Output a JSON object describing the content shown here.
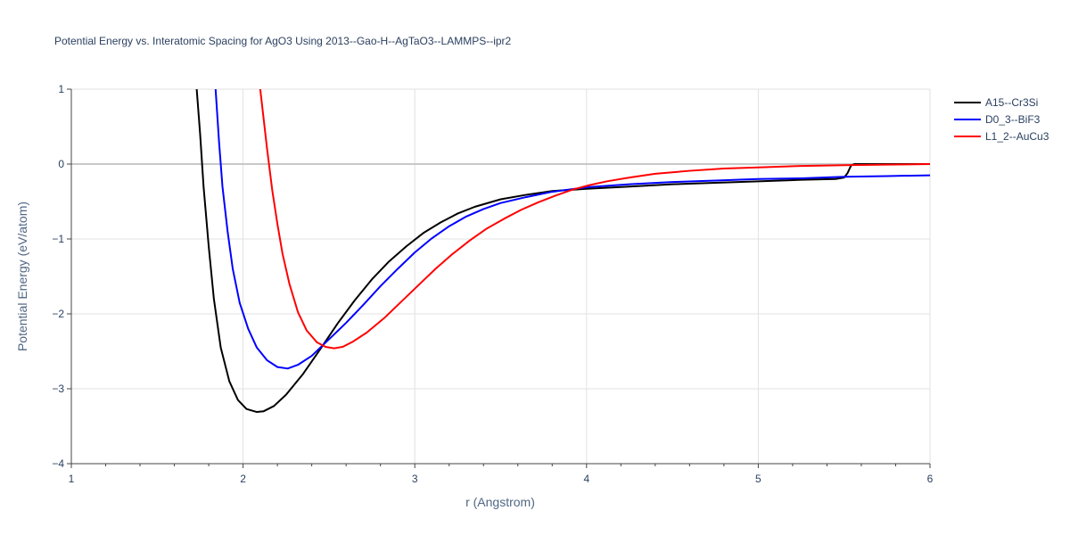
{
  "chart_data": {
    "type": "line",
    "title": "Potential Energy vs. Interatomic Spacing for AgO3 Using 2013--Gao-H--AgTaO3--LAMMPS--ipr2",
    "xlabel": "r (Angstrom)",
    "ylabel": "Potential Energy (eV/atom)",
    "xlim": [
      1,
      6
    ],
    "ylim": [
      -4,
      1
    ],
    "x_ticks": [
      1,
      2,
      3,
      4,
      5,
      6
    ],
    "y_ticks": [
      -4,
      -3,
      -2,
      -1,
      0,
      1
    ],
    "x_tick_labels": [
      "1",
      "2",
      "3",
      "4",
      "5",
      "6"
    ],
    "y_tick_labels": [
      "−4",
      "−3",
      "−2",
      "−1",
      "0",
      "1"
    ],
    "grid": true,
    "legend_position": "top-right",
    "series": [
      {
        "name": "A15--Cr3Si",
        "color": "#000000",
        "points": [
          [
            1.73,
            1.0
          ],
          [
            1.75,
            0.4
          ],
          [
            1.77,
            -0.3
          ],
          [
            1.8,
            -1.1
          ],
          [
            1.83,
            -1.8
          ],
          [
            1.87,
            -2.45
          ],
          [
            1.92,
            -2.9
          ],
          [
            1.97,
            -3.15
          ],
          [
            2.02,
            -3.27
          ],
          [
            2.08,
            -3.31
          ],
          [
            2.12,
            -3.3
          ],
          [
            2.18,
            -3.23
          ],
          [
            2.25,
            -3.08
          ],
          [
            2.35,
            -2.8
          ],
          [
            2.45,
            -2.47
          ],
          [
            2.55,
            -2.13
          ],
          [
            2.65,
            -1.82
          ],
          [
            2.75,
            -1.54
          ],
          [
            2.85,
            -1.3
          ],
          [
            2.95,
            -1.1
          ],
          [
            3.05,
            -0.92
          ],
          [
            3.15,
            -0.78
          ],
          [
            3.25,
            -0.66
          ],
          [
            3.35,
            -0.57
          ],
          [
            3.5,
            -0.47
          ],
          [
            3.65,
            -0.41
          ],
          [
            3.8,
            -0.36
          ],
          [
            4.0,
            -0.33
          ],
          [
            4.25,
            -0.3
          ],
          [
            4.5,
            -0.27
          ],
          [
            4.75,
            -0.25
          ],
          [
            5.0,
            -0.23
          ],
          [
            5.25,
            -0.21
          ],
          [
            5.45,
            -0.2
          ],
          [
            5.5,
            -0.18
          ],
          [
            5.52,
            -0.12
          ],
          [
            5.54,
            -0.02
          ],
          [
            5.56,
            0.0
          ],
          [
            5.7,
            0.0
          ],
          [
            6.0,
            0.0
          ]
        ]
      },
      {
        "name": "D0_3--BiF3",
        "color": "#0000ff",
        "points": [
          [
            1.84,
            1.0
          ],
          [
            1.86,
            0.3
          ],
          [
            1.88,
            -0.3
          ],
          [
            1.91,
            -0.9
          ],
          [
            1.94,
            -1.4
          ],
          [
            1.98,
            -1.85
          ],
          [
            2.03,
            -2.2
          ],
          [
            2.08,
            -2.45
          ],
          [
            2.14,
            -2.62
          ],
          [
            2.2,
            -2.71
          ],
          [
            2.26,
            -2.73
          ],
          [
            2.32,
            -2.68
          ],
          [
            2.4,
            -2.56
          ],
          [
            2.5,
            -2.34
          ],
          [
            2.6,
            -2.12
          ],
          [
            2.7,
            -1.88
          ],
          [
            2.8,
            -1.63
          ],
          [
            2.9,
            -1.4
          ],
          [
            3.0,
            -1.18
          ],
          [
            3.1,
            -0.99
          ],
          [
            3.2,
            -0.83
          ],
          [
            3.3,
            -0.7
          ],
          [
            3.4,
            -0.6
          ],
          [
            3.5,
            -0.52
          ],
          [
            3.65,
            -0.44
          ],
          [
            3.8,
            -0.37
          ],
          [
            4.0,
            -0.31
          ],
          [
            4.25,
            -0.27
          ],
          [
            4.5,
            -0.24
          ],
          [
            4.75,
            -0.22
          ],
          [
            5.0,
            -0.2
          ],
          [
            5.25,
            -0.19
          ],
          [
            5.5,
            -0.17
          ],
          [
            5.75,
            -0.16
          ],
          [
            6.0,
            -0.15
          ]
        ]
      },
      {
        "name": "L1_2--AuCu3",
        "color": "#ff0000",
        "points": [
          [
            2.1,
            1.0
          ],
          [
            2.12,
            0.6
          ],
          [
            2.14,
            0.2
          ],
          [
            2.17,
            -0.35
          ],
          [
            2.2,
            -0.8
          ],
          [
            2.23,
            -1.2
          ],
          [
            2.27,
            -1.6
          ],
          [
            2.32,
            -1.98
          ],
          [
            2.37,
            -2.22
          ],
          [
            2.43,
            -2.38
          ],
          [
            2.48,
            -2.44
          ],
          [
            2.53,
            -2.46
          ],
          [
            2.58,
            -2.44
          ],
          [
            2.64,
            -2.37
          ],
          [
            2.72,
            -2.25
          ],
          [
            2.82,
            -2.06
          ],
          [
            2.92,
            -1.84
          ],
          [
            3.02,
            -1.62
          ],
          [
            3.12,
            -1.4
          ],
          [
            3.22,
            -1.2
          ],
          [
            3.32,
            -1.02
          ],
          [
            3.42,
            -0.86
          ],
          [
            3.52,
            -0.73
          ],
          [
            3.62,
            -0.61
          ],
          [
            3.72,
            -0.51
          ],
          [
            3.82,
            -0.42
          ],
          [
            3.92,
            -0.34
          ],
          [
            4.02,
            -0.28
          ],
          [
            4.12,
            -0.23
          ],
          [
            4.25,
            -0.18
          ],
          [
            4.4,
            -0.13
          ],
          [
            4.6,
            -0.09
          ],
          [
            4.8,
            -0.06
          ],
          [
            5.0,
            -0.045
          ],
          [
            5.25,
            -0.025
          ],
          [
            5.5,
            -0.015
          ],
          [
            5.75,
            -0.007
          ],
          [
            6.0,
            0.0
          ]
        ]
      }
    ]
  }
}
